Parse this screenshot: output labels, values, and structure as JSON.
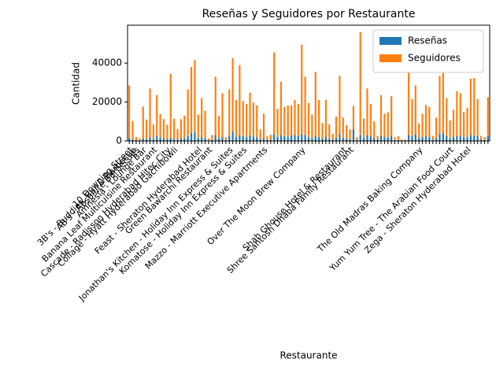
{
  "chart_data": {
    "type": "bar",
    "stacked": true,
    "title": "Reseñas y Seguidores por Restaurante",
    "xlabel": "Restaurante",
    "ylabel": "Cantidad",
    "categories": [
      "10 Downing Street",
      "3B's - Buddies, Bar & Barbecue",
      "AB's - Absolute Barbecues",
      null,
      "Amnesia - Lounge Bar",
      null,
      null,
      "Banana Leaf Multicuisine Restaurant",
      null,
      null,
      null,
      "Cascade - Radisson Hyderabad Hitec City",
      null,
      "Collage - Hyatt Hyderabad Gachibowli",
      null,
      null,
      null,
      null,
      null,
      null,
      "Feast - Sheraton Hyderabad Hotel",
      null,
      null,
      "Green Bawarchi Restaurant",
      null,
      null,
      null,
      null,
      null,
      "Jonathan's Kitchen - Holiday Inn Express & Suites",
      null,
      null,
      null,
      "Komatose - Holiday Inn Express & Suites",
      null,
      null,
      null,
      null,
      null,
      "Mazzo - Marriott Executive Apartments",
      null,
      null,
      null,
      null,
      null,
      null,
      null,
      null,
      null,
      null,
      "Over The Moon Brew Company",
      null,
      null,
      null,
      null,
      null,
      null,
      null,
      null,
      null,
      null,
      null,
      "Shah Ghouse Hotel & Restaurant",
      null,
      "Shree Santosh Dhaba Family Restaurant",
      null,
      null,
      null,
      null,
      null,
      null,
      null,
      null,
      null,
      null,
      null,
      null,
      null,
      null,
      null,
      null,
      null,
      null,
      null,
      "The Old Madras Baking Company",
      null,
      null,
      null,
      null,
      null,
      null,
      null,
      null,
      "Yum Yum Tree - The Arabian Food Court",
      null,
      null,
      null,
      null,
      "Zega - Sheraton Hyderabad Hotel",
      null,
      null,
      null,
      null,
      null,
      null
    ],
    "series": [
      {
        "name": "Reseñas",
        "color": "#1f77b4",
        "values": [
          1500,
          800,
          500,
          300,
          1200,
          1000,
          2000,
          900,
          2500,
          1800,
          1200,
          800,
          1500,
          900,
          700,
          1200,
          1500,
          2500,
          4000,
          4500,
          1500,
          2000,
          1500,
          300,
          500,
          3000,
          1200,
          2000,
          400,
          2500,
          5000,
          2000,
          3000,
          2500,
          2000,
          2800,
          2200,
          1800,
          900,
          1500,
          400,
          600,
          3500,
          2000,
          3000,
          2500,
          2200,
          2800,
          3000,
          2500,
          3500,
          3000,
          2000,
          1500,
          2500,
          2000,
          1200,
          2200,
          1000,
          600,
          1500,
          3500,
          1500,
          1200,
          900,
          6000,
          500,
          3000,
          1500,
          3000,
          2500,
          1500,
          600,
          2500,
          2000,
          1800,
          2500,
          500,
          500,
          200,
          200,
          3000,
          2500,
          3500,
          1500,
          2000,
          2500,
          2000,
          600,
          1500,
          3500,
          4000,
          2500,
          1500,
          2000,
          2500,
          2500,
          1800,
          2000,
          3000,
          2800,
          2500,
          600,
          500,
          2500
        ]
      },
      {
        "name": "Seguidores",
        "color": "#ff7f0e",
        "values": [
          27000,
          9500,
          1500,
          1000,
          16500,
          10000,
          25000,
          7500,
          21000,
          12000,
          10000,
          7500,
          33000,
          10500,
          5500,
          10000,
          11500,
          24000,
          34000,
          37000,
          12000,
          20000,
          14000,
          1000,
          2500,
          30000,
          11500,
          22500,
          1500,
          24000,
          37500,
          19000,
          36000,
          18000,
          17000,
          22000,
          17500,
          16500,
          5000,
          12500,
          2000,
          2500,
          42000,
          14500,
          27500,
          15000,
          16000,
          15500,
          18000,
          16500,
          46000,
          30000,
          17500,
          12000,
          33000,
          19000,
          8000,
          19000,
          7500,
          3000,
          11000,
          30000,
          10500,
          7000,
          5000,
          12000,
          1500,
          53000,
          10000,
          24000,
          16500,
          8500,
          2000,
          21000,
          12000,
          13000,
          20500,
          1500,
          2000,
          500,
          500,
          33000,
          19000,
          25000,
          7500,
          12000,
          16000,
          15500,
          2000,
          10500,
          30000,
          36000,
          19500,
          9000,
          14000,
          23000,
          22000,
          13000,
          15000,
          29000,
          29500,
          19000,
          2000,
          1500,
          20000
        ]
      }
    ],
    "ylim": [
      0,
      59500
    ],
    "yticks": [
      0,
      20000,
      40000
    ],
    "legend": "upper right"
  }
}
